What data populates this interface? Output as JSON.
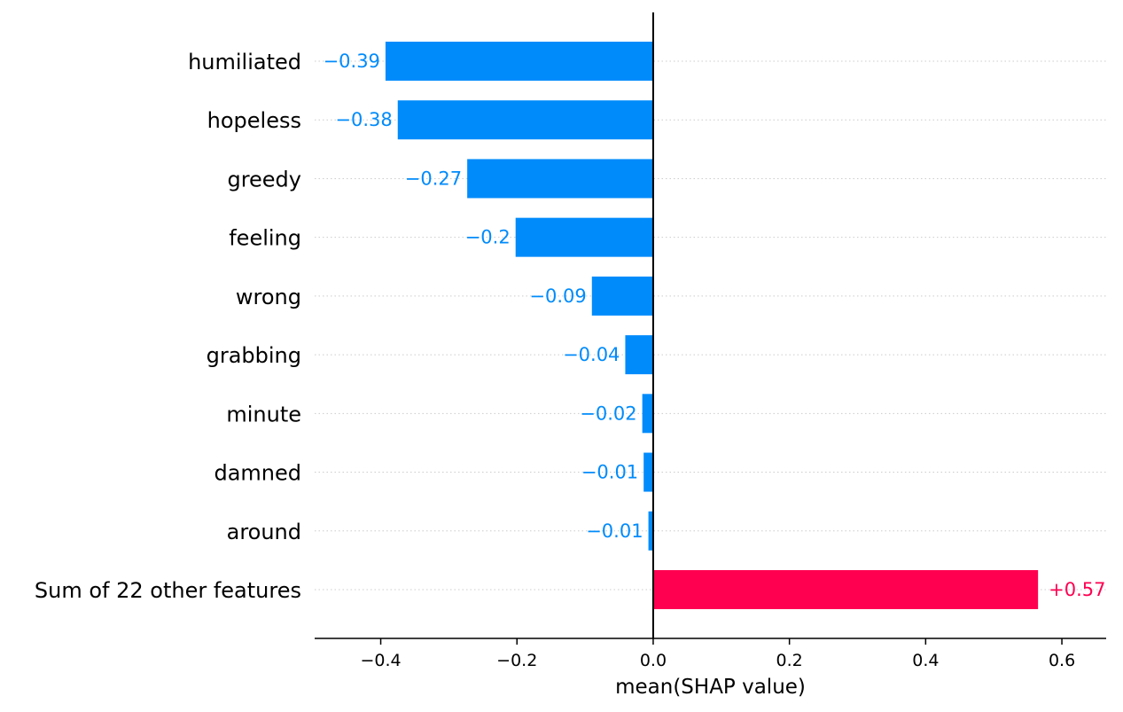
{
  "chart_data": {
    "type": "bar",
    "orientation": "horizontal",
    "categories": [
      "humiliated",
      "hopeless",
      "greedy",
      "feeling",
      "wrong",
      "grabbing",
      "minute",
      "damned",
      "around",
      "Sum of 22 other features"
    ],
    "values": [
      -0.393,
      -0.375,
      -0.273,
      -0.202,
      -0.09,
      -0.041,
      -0.016,
      -0.014,
      -0.007,
      0.565
    ],
    "value_labels": [
      "−0.39",
      "−0.38",
      "−0.27",
      "−0.2",
      "−0.09",
      "−0.04",
      "−0.02",
      "−0.01",
      "−0.01",
      "+0.57"
    ],
    "xlabel": "mean(SHAP value)",
    "ylabel": "",
    "title": "",
    "xlim": [
      -0.497,
      0.665
    ],
    "xticks": [
      -0.4,
      -0.2,
      0.0,
      0.2,
      0.4,
      0.6
    ],
    "xtick_labels": [
      "−0.4",
      "−0.2",
      "0.0",
      "0.2",
      "0.4",
      "0.6"
    ],
    "grid": "horizontal dotted",
    "colors": {
      "negative": "#008bfb",
      "positive": "#ff0051",
      "grid": "#cccccc",
      "axis": "#000000"
    }
  }
}
